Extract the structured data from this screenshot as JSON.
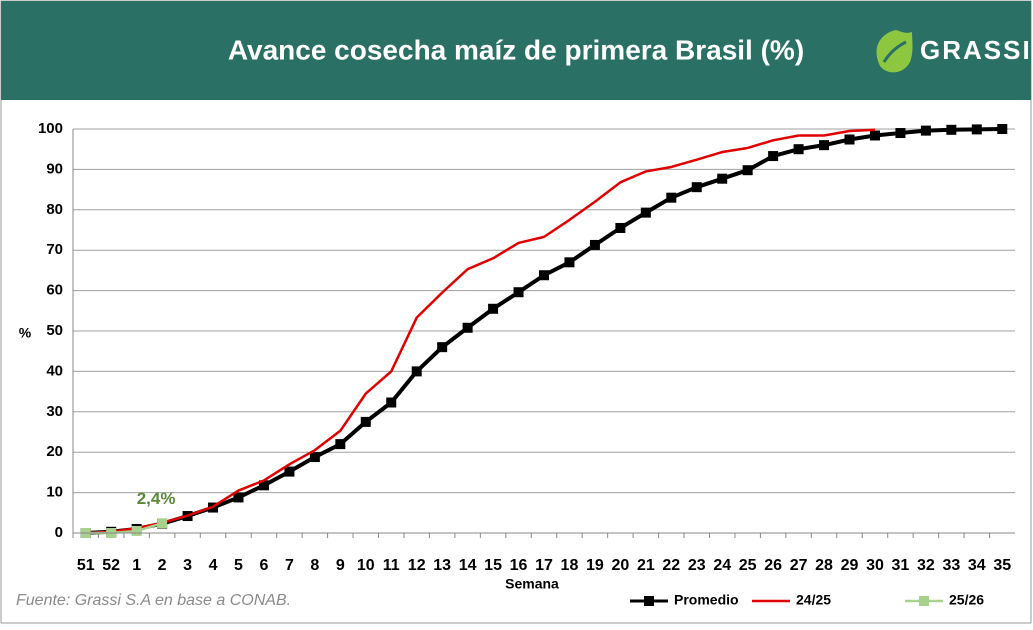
{
  "chart_data": {
    "type": "line",
    "title": "Avance cosecha maíz de primera Brasil (%)",
    "logo": "GRASSI",
    "source": "Fuente: Grassi S.A en base a CONAB.",
    "x_label": "Semana",
    "y_label": "%",
    "annotation": "2,4%",
    "categories": [
      "51",
      "52",
      "1",
      "2",
      "3",
      "4",
      "5",
      "6",
      "7",
      "8",
      "9",
      "10",
      "11",
      "12",
      "13",
      "14",
      "15",
      "16",
      "17",
      "18",
      "19",
      "20",
      "21",
      "22",
      "23",
      "24",
      "25",
      "26",
      "27",
      "28",
      "29",
      "30",
      "31",
      "32",
      "33",
      "34",
      "35"
    ],
    "series": [
      {
        "name": "Promedio",
        "color": "#000000",
        "markers": true,
        "values": [
          0,
          0.3,
          1,
          2.3,
          4.2,
          6.3,
          8.8,
          11.8,
          15.2,
          18.8,
          22,
          27.5,
          32.3,
          40,
          46,
          50.8,
          55.5,
          59.6,
          63.8,
          67,
          71.3,
          75.5,
          79.3,
          83,
          85.6,
          87.7,
          89.8,
          93.3,
          95,
          96,
          97.4,
          98.4,
          99,
          99.6,
          99.8,
          99.9,
          100
        ]
      },
      {
        "name": "24/25",
        "color": "#e00000",
        "markers": false,
        "values": [
          0,
          0.3,
          1.2,
          2.5,
          4.3,
          6.5,
          10.5,
          13,
          17,
          20.5,
          25.3,
          34.5,
          40,
          53.3,
          59.5,
          65.3,
          68,
          71.8,
          73.3,
          77.5,
          82,
          86.8,
          89.5,
          90.6,
          92.4,
          94.3,
          95.3,
          97.2,
          98.4,
          98.4,
          99.5,
          99.8,
          null,
          null,
          null,
          null,
          null
        ]
      },
      {
        "name": "25/26",
        "color": "#a9d18e",
        "markers": true,
        "values": [
          0,
          0,
          0.5,
          2.4,
          null,
          null,
          null,
          null,
          null,
          null,
          null,
          null,
          null,
          null,
          null,
          null,
          null,
          null,
          null,
          null,
          null,
          null,
          null,
          null,
          null,
          null,
          null,
          null,
          null,
          null,
          null,
          null,
          null,
          null,
          null,
          null,
          null
        ]
      }
    ],
    "ylim": [
      0,
      100
    ],
    "yticks": [
      0,
      10,
      20,
      30,
      40,
      50,
      60,
      70,
      80,
      90,
      100
    ],
    "grid": true,
    "legend": "bottom-right"
  }
}
